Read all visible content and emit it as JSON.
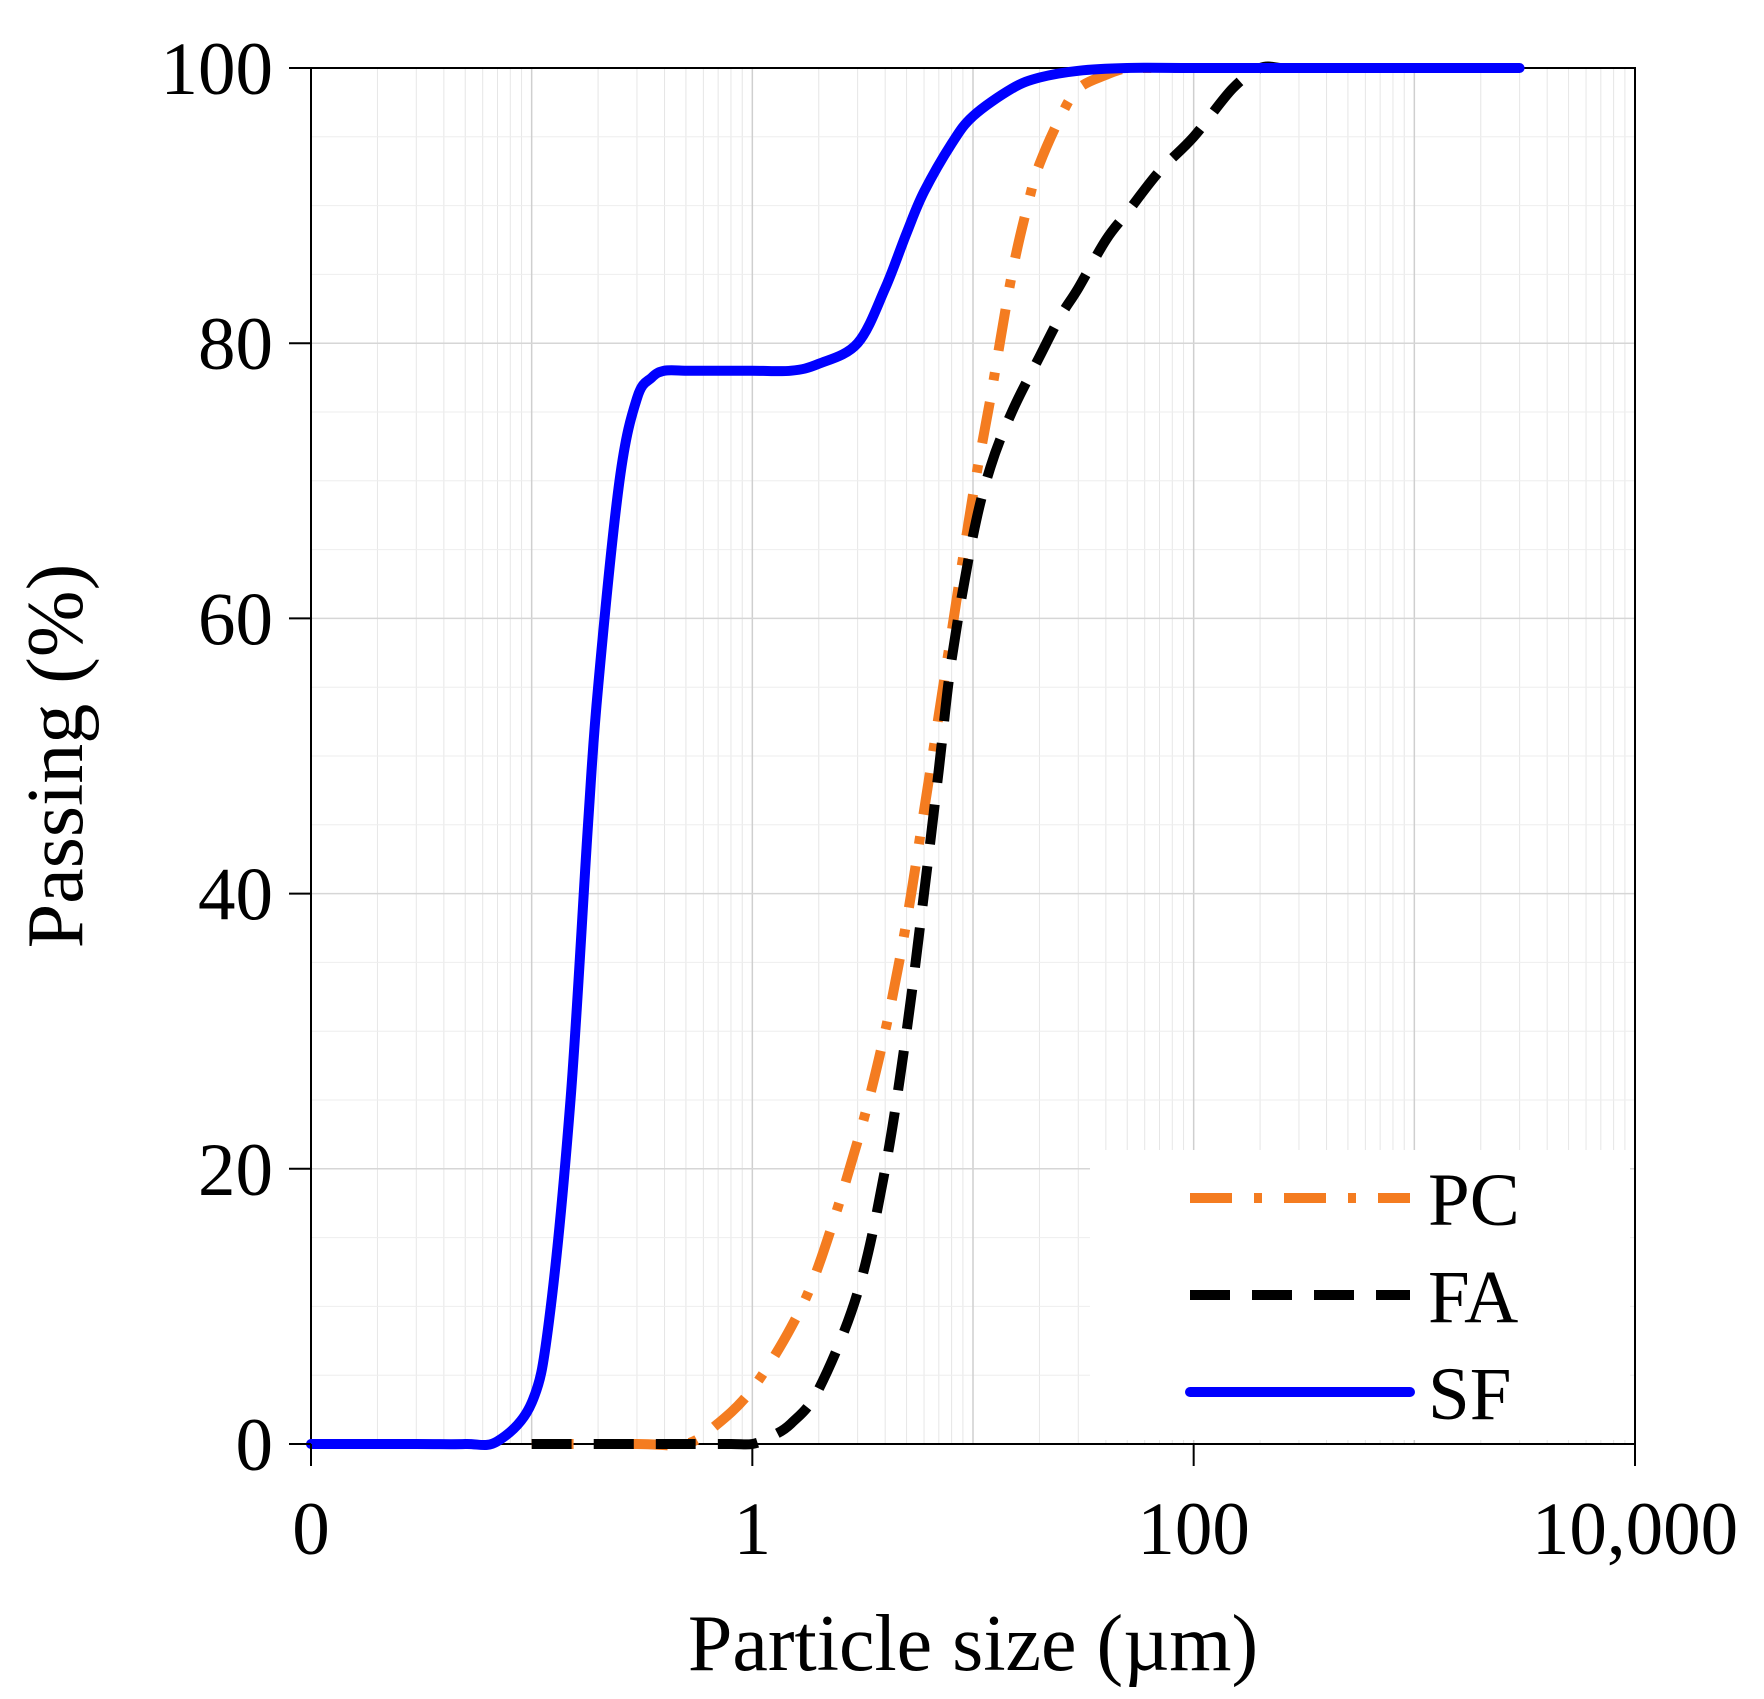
{
  "chart_data": {
    "type": "line",
    "title": "",
    "xlabel": "Particle size (µm)",
    "ylabel": "Passing (%)",
    "xscale": "log",
    "xlim": [
      0.01,
      10000
    ],
    "ylim": [
      0,
      100
    ],
    "x_ticks": [
      {
        "value": 0.01,
        "label": "0"
      },
      {
        "value": 1,
        "label": "1"
      },
      {
        "value": 100,
        "label": "100"
      },
      {
        "value": 10000,
        "label": "10,000"
      }
    ],
    "y_ticks": [
      {
        "value": 0,
        "label": "0"
      },
      {
        "value": 20,
        "label": "20"
      },
      {
        "value": 40,
        "label": "40"
      },
      {
        "value": 60,
        "label": "60"
      },
      {
        "value": 80,
        "label": "80"
      },
      {
        "value": 100,
        "label": "100"
      }
    ],
    "grid": true,
    "legend_position": "bottom-right",
    "series": [
      {
        "name": "PC",
        "style": "dash-dot",
        "color": "#F47C20",
        "x": [
          0.1,
          0.3,
          0.5,
          0.7,
          1,
          1.5,
          2,
          3,
          4,
          5,
          6,
          7,
          8,
          10,
          12,
          15,
          18,
          20,
          25,
          30,
          40,
          50,
          60,
          80,
          100
        ],
        "y": [
          0,
          0,
          0,
          1.5,
          4,
          8.5,
          13,
          22,
          30,
          38,
          46,
          53,
          59,
          69,
          76,
          85,
          90.5,
          93,
          96.5,
          98.5,
          99.5,
          100,
          100,
          100,
          100
        ]
      },
      {
        "name": "FA",
        "style": "dashed",
        "color": "#000000",
        "x": [
          0.1,
          0.3,
          0.5,
          0.8,
          1,
          1.2,
          1.5,
          2,
          3,
          4,
          5,
          6,
          7,
          8,
          10,
          12,
          15,
          20,
          25,
          30,
          40,
          50,
          70,
          100,
          150,
          200,
          250,
          300,
          350
        ],
        "y": [
          0,
          0,
          0,
          0,
          0,
          0.5,
          1.5,
          4,
          11,
          20,
          30,
          40,
          49,
          57,
          66,
          71,
          75,
          79,
          82,
          84,
          87.5,
          89.5,
          92.5,
          95,
          98.5,
          100,
          100,
          100,
          100
        ]
      },
      {
        "name": "SF",
        "style": "solid",
        "color": "#0000FF",
        "x": [
          0.01,
          0.03,
          0.05,
          0.07,
          0.1,
          0.12,
          0.15,
          0.18,
          0.2,
          0.25,
          0.3,
          0.35,
          0.4,
          0.5,
          0.6,
          0.8,
          1,
          1.5,
          2,
          3,
          4,
          5,
          6,
          8,
          10,
          15,
          20,
          30,
          50,
          100,
          300,
          1000,
          3000
        ],
        "y": [
          0,
          0,
          0,
          0.2,
          3,
          9,
          25,
          45,
          55,
          70,
          76,
          77.5,
          78,
          78,
          78,
          78,
          78,
          78,
          78.5,
          80,
          84,
          88,
          91,
          94.5,
          96.5,
          98.5,
          99.3,
          99.8,
          100,
          100,
          100,
          100,
          100
        ]
      }
    ]
  }
}
